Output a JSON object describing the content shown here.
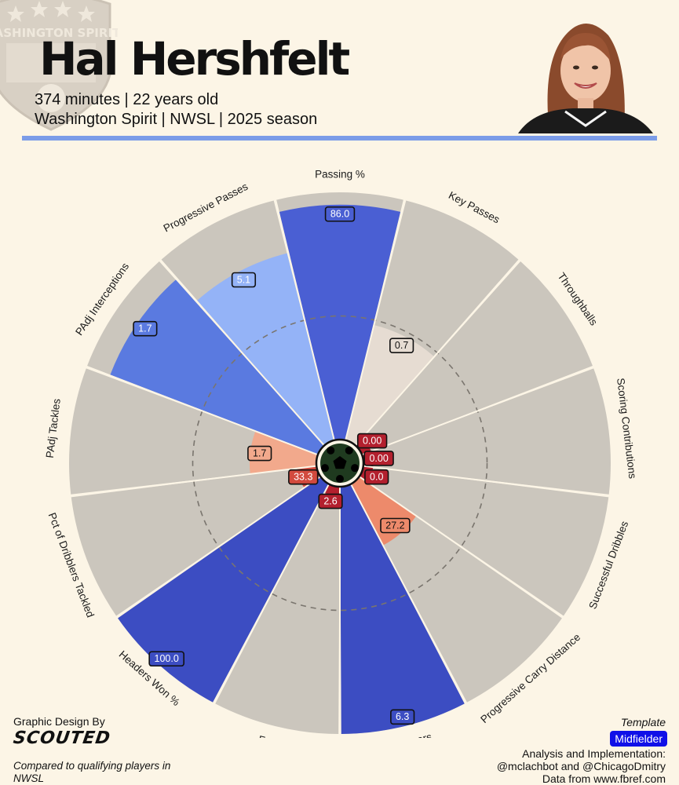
{
  "header": {
    "player_name": "Hal Hershfelt",
    "line1": "374 minutes | 22 years old",
    "line2": "Washington Spirit | NWSL | 2025 season"
  },
  "crest": {
    "text": "WASHINGTON SPIRIT"
  },
  "colors": {
    "background": "#fcf5e6",
    "rule": "#7b9ce8",
    "slice_bg": "#cbc6bd",
    "template_tag": "#1010e8",
    "low": "#b3202e",
    "mid": "#e6dcd2",
    "high": "#3f4fc6"
  },
  "chart_data": {
    "type": "radar-pizza",
    "scale": "percentile",
    "ylim": [
      0,
      100
    ],
    "reference_rings": [
      50
    ],
    "metrics": [
      {
        "label": "Passing %",
        "value": "86.0",
        "percentile": 95,
        "color": "#4a5fd3"
      },
      {
        "label": "Key Passes",
        "value": "0.7",
        "percentile": 48,
        "color": "#e6dcd2"
      },
      {
        "label": "Throughballs",
        "value": "0.00",
        "percentile": 4,
        "color": "#b3202e"
      },
      {
        "label": "Scoring Contributions",
        "value": "0.00",
        "percentile": 4,
        "color": "#b3202e"
      },
      {
        "label": "Successful Dribbles",
        "value": "0.0",
        "percentile": 4,
        "color": "#b3202e"
      },
      {
        "label": "Progressive Carry Distance",
        "value": "27.2",
        "percentile": 28,
        "color": "#ed8a6b"
      },
      {
        "label": "Turnovers",
        "value": "6.3",
        "percentile": 100,
        "color": "#3c4dc2"
      },
      {
        "label": "Fouls",
        "value": "2.6",
        "percentile": 4,
        "color": "#b3202e"
      },
      {
        "label": "Headers Won %",
        "value": "100.0",
        "percentile": 100,
        "color": "#3c4dc2"
      },
      {
        "label": "Pct of Dribblers Tackled",
        "value": "33.3",
        "percentile": 8,
        "color": "#d24a3e"
      },
      {
        "label": "PAdj Tackles",
        "value": "1.7",
        "percentile": 27,
        "color": "#f2a98c"
      },
      {
        "label": "PAdj Interceptions",
        "value": "1.7",
        "percentile": 90,
        "color": "#5a7ae0"
      },
      {
        "label": "Progressive Passes",
        "value": "5.1",
        "percentile": 78,
        "color": "#94b3f7"
      }
    ]
  },
  "footer": {
    "graphic_design": "Graphic Design By",
    "brand": "SCOUTED",
    "compared": "Compared to qualifying players in NWSL",
    "template_label": "Template",
    "template_value": "Midfielder",
    "analysis": "Analysis and Implementation:",
    "authors": "@mclachbot and @ChicagoDmitry",
    "source": "Data from www.fbref.com"
  }
}
